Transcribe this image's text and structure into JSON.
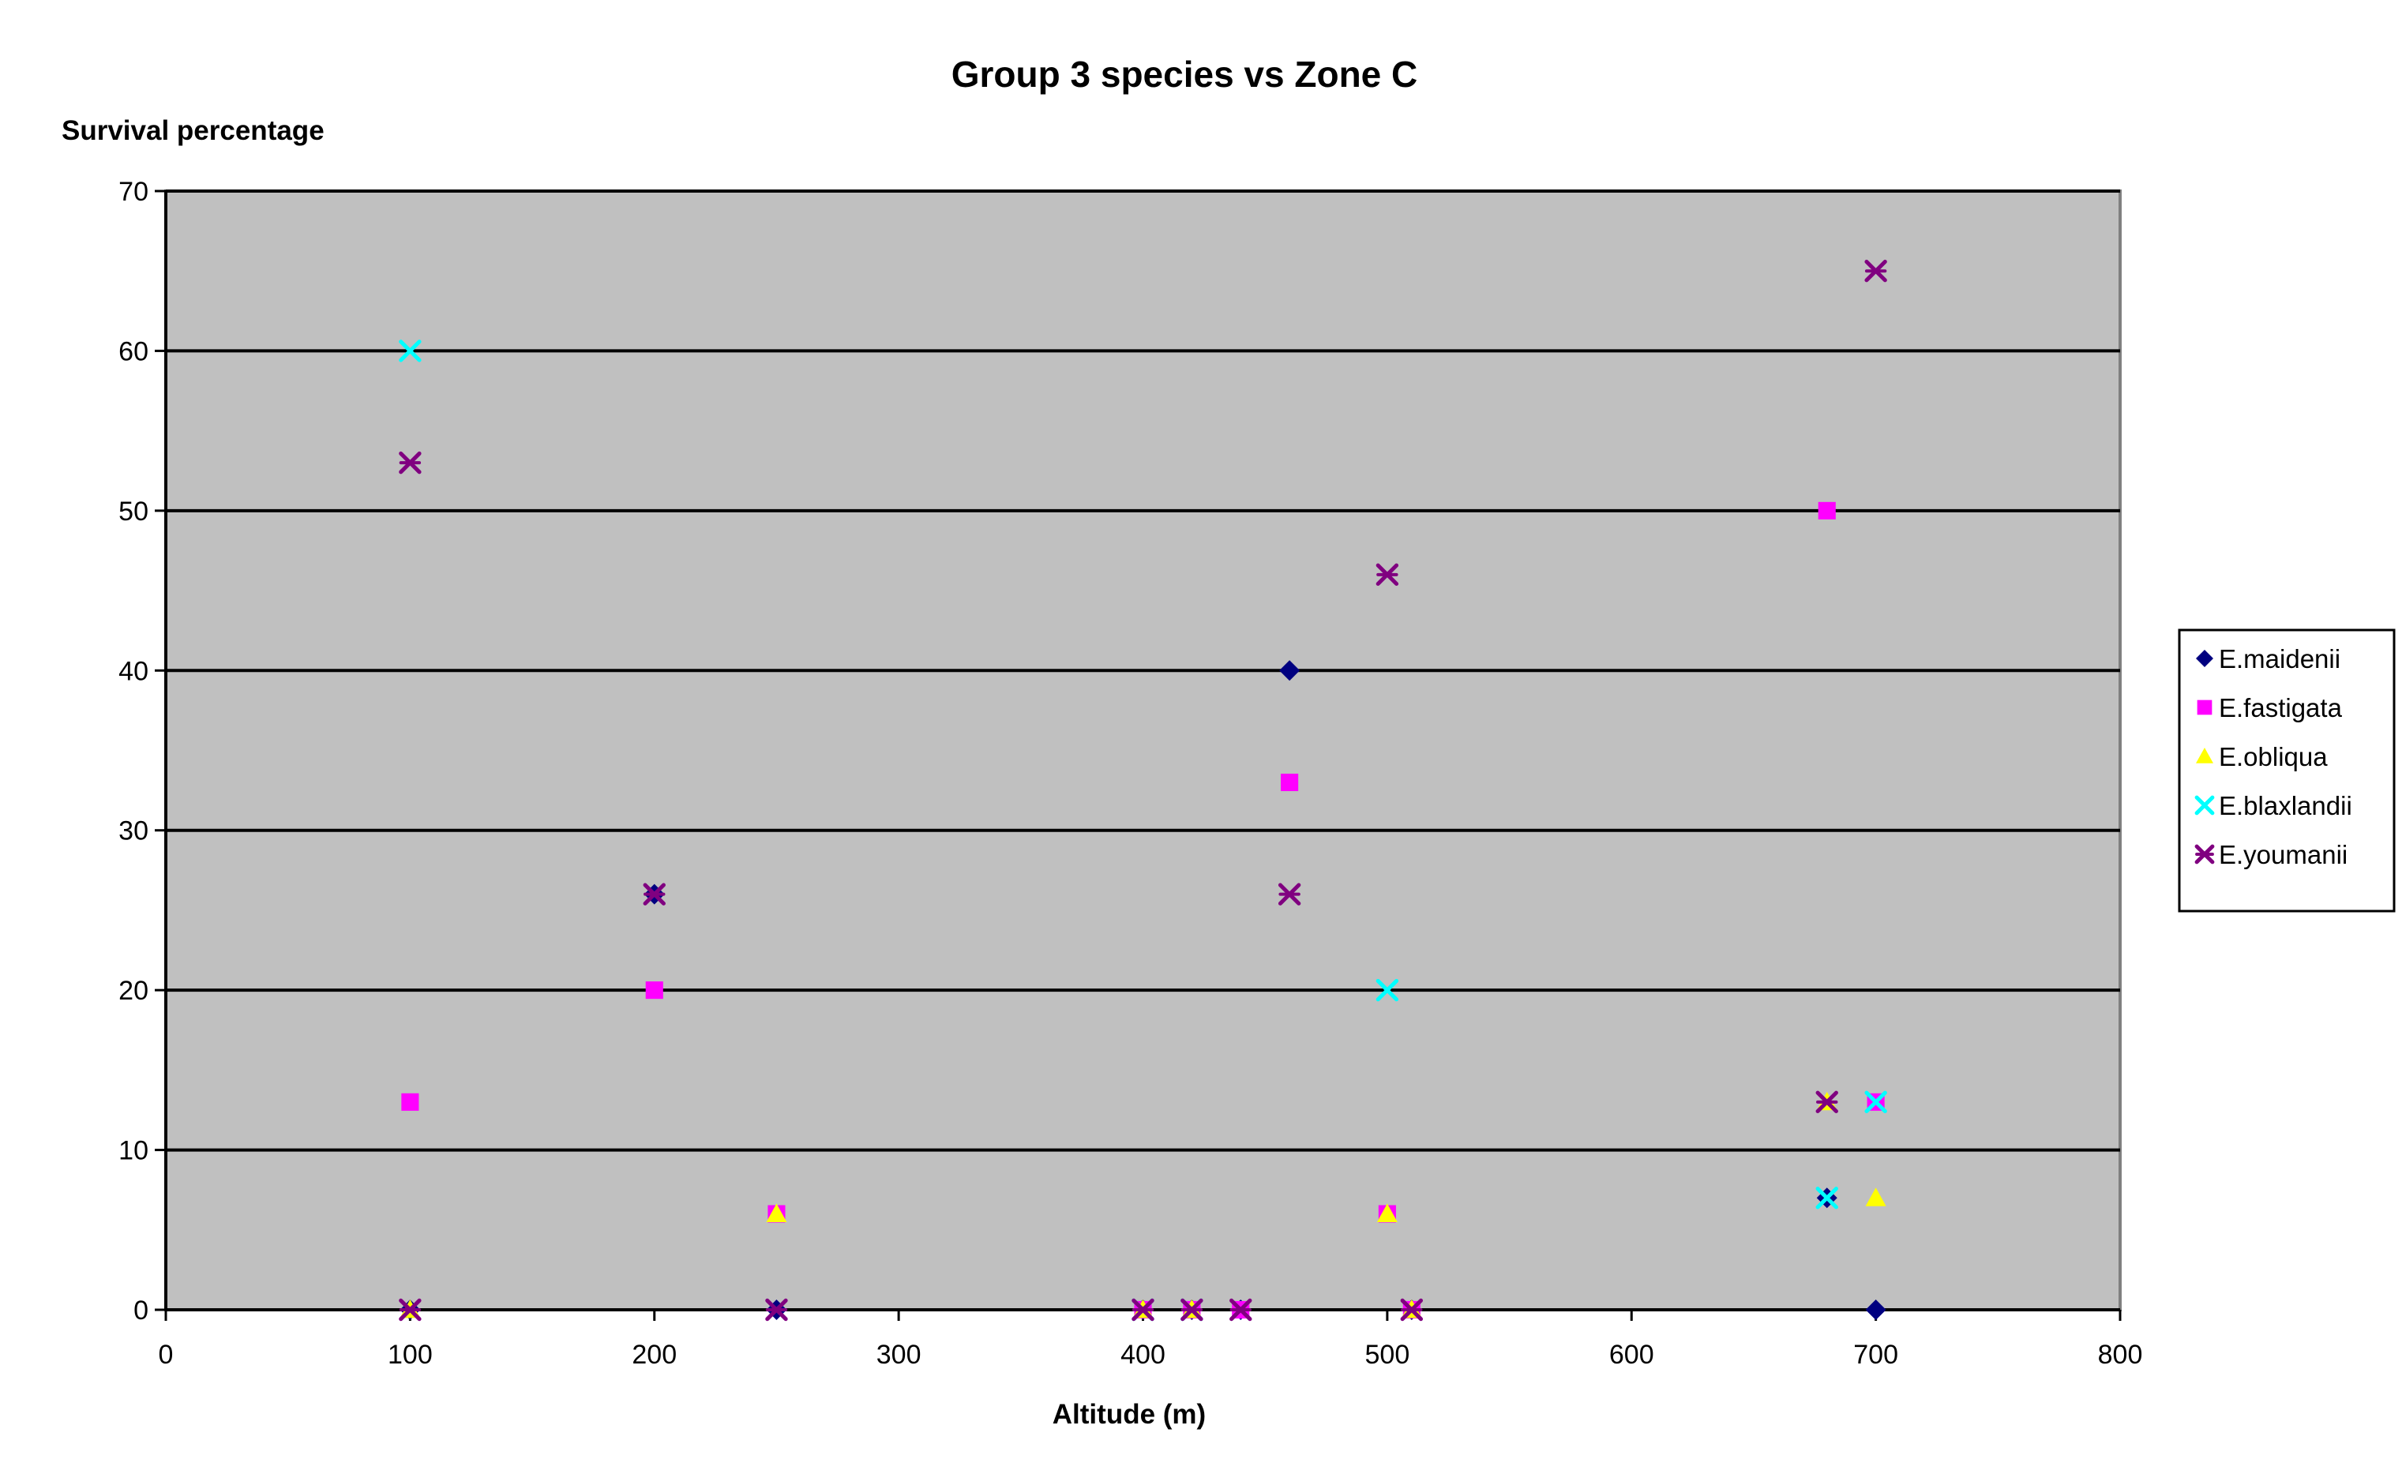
{
  "chart_data": {
    "type": "scatter",
    "title": "Group 3 species vs Zone C",
    "xlabel": "Altitude (m)",
    "ylabel": "Survival percentage",
    "xlim": [
      0,
      800
    ],
    "ylim": [
      0,
      70
    ],
    "xticks": [
      0,
      100,
      200,
      300,
      400,
      500,
      600,
      700,
      800
    ],
    "yticks": [
      0,
      10,
      20,
      30,
      40,
      50,
      60,
      70
    ],
    "grid": "horizontal",
    "legend_position": "right",
    "plot_background": "#c0c0c0",
    "series": [
      {
        "name": "E.maidenii",
        "marker": "diamond",
        "color": "#000080",
        "points": [
          [
            100,
            0
          ],
          [
            200,
            26
          ],
          [
            250,
            0
          ],
          [
            400,
            0
          ],
          [
            420,
            0
          ],
          [
            440,
            0
          ],
          [
            460,
            40
          ],
          [
            510,
            0
          ],
          [
            680,
            7
          ],
          [
            700,
            0
          ]
        ]
      },
      {
        "name": "E.fastigata",
        "marker": "square",
        "color": "#ff00ff",
        "points": [
          [
            100,
            13
          ],
          [
            200,
            20
          ],
          [
            250,
            6
          ],
          [
            400,
            0
          ],
          [
            420,
            0
          ],
          [
            440,
            0
          ],
          [
            460,
            33
          ],
          [
            500,
            6
          ],
          [
            510,
            0
          ],
          [
            680,
            50
          ],
          [
            700,
            13
          ]
        ]
      },
      {
        "name": "E.obliqua",
        "marker": "triangle",
        "color": "#ffff00",
        "points": [
          [
            100,
            0
          ],
          [
            250,
            6
          ],
          [
            400,
            0
          ],
          [
            420,
            0
          ],
          [
            500,
            6
          ],
          [
            510,
            0
          ],
          [
            680,
            13
          ],
          [
            700,
            7
          ]
        ]
      },
      {
        "name": "E.blaxlandii",
        "marker": "x",
        "color": "#00ffff",
        "points": [
          [
            100,
            60
          ],
          [
            400,
            0
          ],
          [
            420,
            0
          ],
          [
            500,
            20
          ],
          [
            680,
            7
          ],
          [
            700,
            13
          ]
        ]
      },
      {
        "name": "E.youmanii",
        "marker": "star",
        "color": "#800080",
        "points": [
          [
            100,
            53
          ],
          [
            100,
            0
          ],
          [
            200,
            26
          ],
          [
            250,
            0
          ],
          [
            400,
            0
          ],
          [
            420,
            0
          ],
          [
            440,
            0
          ],
          [
            460,
            26
          ],
          [
            500,
            46
          ],
          [
            510,
            0
          ],
          [
            680,
            13
          ],
          [
            700,
            65
          ]
        ]
      }
    ]
  }
}
